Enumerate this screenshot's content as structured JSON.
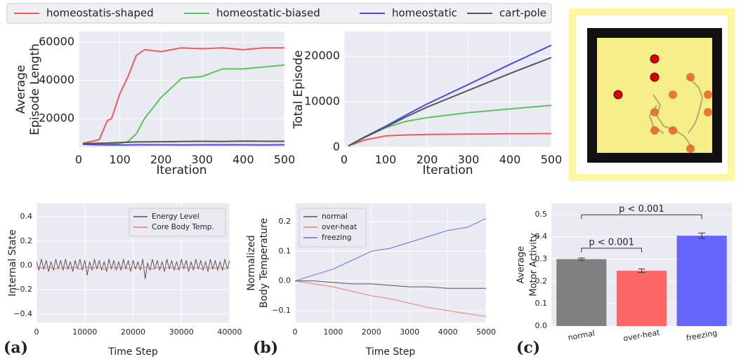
{
  "chart_data": [
    {
      "type": "line",
      "panel": null,
      "xlabel": "Iteration",
      "ylabel": [
        "Average",
        "Episode Length"
      ],
      "x": [
        10,
        30,
        50,
        70,
        80,
        100,
        120,
        140,
        160,
        200,
        250,
        300,
        350,
        400,
        450,
        500
      ],
      "series": [
        {
          "name": "homeostatis-shaped",
          "color": "#f05a5a",
          "values": [
            7000,
            8000,
            9000,
            19000,
            20000,
            33000,
            42000,
            53000,
            56000,
            55000,
            57000,
            56500,
            57000,
            56000,
            57000,
            57000
          ]
        },
        {
          "name": "homeostatic-biased",
          "color": "#5cc25c",
          "values": [
            6500,
            6500,
            6500,
            6600,
            6700,
            7000,
            8000,
            12000,
            20000,
            31000,
            41000,
            42000,
            46000,
            46000,
            47000,
            48000
          ]
        },
        {
          "name": "homeostatic",
          "color": "#4a4ae6",
          "values": [
            6500,
            6400,
            6300,
            6200,
            6200,
            6200,
            6200,
            6300,
            6300,
            6300,
            6200,
            6300,
            6300,
            6300,
            6200,
            6300
          ]
        },
        {
          "name": "cart-pole",
          "color": "#555555",
          "values": [
            7000,
            7000,
            7100,
            7200,
            7300,
            7500,
            7600,
            7800,
            7800,
            7900,
            8000,
            8100,
            8000,
            8200,
            8100,
            8100
          ]
        }
      ],
      "xlim": [
        0,
        500
      ],
      "xticks": [
        0,
        100,
        200,
        300,
        400,
        500
      ],
      "ylim": [
        5000,
        65500
      ],
      "yticks": [
        20000,
        40000,
        60000
      ],
      "grid": true
    },
    {
      "type": "line",
      "xlabel": "Iteration",
      "ylabel": [
        "Total Episode"
      ],
      "x": [
        10,
        50,
        100,
        150,
        200,
        300,
        400,
        500
      ],
      "series": [
        {
          "color": "#f05a5a",
          "values": [
            300,
            1600,
            2500,
            2700,
            2800,
            2900,
            2950,
            3000
          ]
        },
        {
          "color": "#5cc25c",
          "values": [
            300,
            2200,
            4300,
            5700,
            6500,
            7600,
            8400,
            9200
          ]
        },
        {
          "color": "#4a4ae6",
          "values": [
            300,
            2300,
            4600,
            7100,
            9500,
            13800,
            18200,
            22400
          ]
        },
        {
          "color": "#555555",
          "values": [
            300,
            2200,
            4400,
            6700,
            8800,
            12500,
            16200,
            19700
          ]
        }
      ],
      "xlim": [
        0,
        500
      ],
      "xticks": [
        0,
        100,
        200,
        300,
        400,
        500
      ],
      "ylim": [
        0,
        25400
      ],
      "yticks": [
        0,
        10000,
        20000
      ],
      "grid": true
    },
    {
      "type": "line",
      "panel": "(a)",
      "xlabel": "Time Step",
      "ylabel": [
        "Internal State"
      ],
      "legend": "upper right",
      "x": [
        0,
        500,
        1000,
        1500,
        2000,
        2500,
        3000,
        3500,
        4000,
        4500,
        5000,
        5500,
        6000,
        6500,
        7000,
        7500,
        8000,
        8500,
        9000,
        9500,
        10000,
        10500,
        11000,
        11500,
        12000,
        12500,
        13000,
        13500,
        14000,
        14500,
        15000,
        15500,
        16000,
        16500,
        17000,
        17500,
        18000,
        18500,
        19000,
        19500,
        20000,
        20500,
        21000,
        21500,
        22000,
        22500,
        23000,
        23500,
        24000,
        24500,
        25000,
        25500,
        26000,
        26500,
        27000,
        27500,
        28000,
        28500,
        29000,
        29500,
        30000,
        30500,
        31000,
        31500,
        32000,
        32500,
        33000,
        33500,
        34000,
        34500,
        35000,
        35500,
        36000,
        36500,
        37000,
        37500,
        38000,
        38500,
        39000,
        39500,
        40000
      ],
      "series": [
        {
          "name": "Energy Level",
          "color": "#555555",
          "values": [
            0.03,
            -0.04,
            0.05,
            -0.03,
            0.04,
            -0.05,
            0.03,
            -0.04,
            0.05,
            -0.03,
            0.04,
            -0.04,
            0.05,
            -0.03,
            0.03,
            -0.05,
            0.04,
            -0.03,
            0.05,
            -0.04,
            0.04,
            -0.08,
            0.03,
            -0.04,
            0.05,
            -0.03,
            0.04,
            -0.04,
            0.03,
            -0.05,
            0.05,
            -0.03,
            0.04,
            -0.04,
            0.03,
            -0.04,
            0.05,
            -0.03,
            0.04,
            -0.05,
            0.04,
            -0.03,
            0.03,
            -0.04,
            0.05,
            -0.11,
            0.02,
            -0.04,
            0.05,
            -0.03,
            0.04,
            -0.04,
            0.03,
            -0.05,
            0.05,
            -0.03,
            0.04,
            -0.04,
            0.03,
            -0.04,
            0.05,
            -0.03,
            0.04,
            -0.05,
            0.03,
            -0.04,
            0.05,
            -0.03,
            0.04,
            -0.04,
            0.03,
            -0.05,
            0.05,
            -0.03,
            0.04,
            -0.04,
            0.03,
            -0.04,
            0.05,
            -0.03,
            0.04
          ]
        },
        {
          "name": "Core Body Temp.",
          "color": "#f07878",
          "values": [
            -0.02,
            -0.01,
            -0.02,
            -0.03,
            -0.02,
            -0.01,
            -0.02,
            -0.02,
            -0.03,
            -0.02,
            -0.02,
            -0.01,
            -0.02,
            -0.03,
            -0.02,
            -0.01,
            -0.02,
            -0.02,
            -0.03,
            -0.02,
            -0.02,
            -0.01,
            -0.02,
            -0.03,
            -0.02,
            -0.01,
            -0.02,
            -0.02,
            -0.03,
            -0.02,
            -0.02,
            -0.01,
            -0.02,
            -0.03,
            -0.02,
            -0.01,
            -0.02,
            -0.02,
            -0.03,
            -0.02,
            -0.02,
            -0.01,
            -0.02,
            -0.03,
            -0.02,
            -0.01,
            -0.02,
            -0.02,
            -0.03,
            -0.02,
            -0.02,
            -0.01,
            -0.02,
            -0.03,
            -0.02,
            -0.01,
            -0.02,
            -0.02,
            -0.03,
            -0.02,
            -0.02,
            -0.01,
            -0.02,
            -0.03,
            -0.02,
            -0.01,
            -0.02,
            -0.02,
            -0.03,
            -0.02,
            -0.02,
            -0.01,
            -0.02,
            -0.03,
            -0.02,
            -0.01,
            -0.02,
            -0.02,
            -0.03,
            -0.02,
            -0.02
          ]
        }
      ],
      "xlim": [
        0,
        40000
      ],
      "xticks": [
        0,
        10000,
        20000,
        30000,
        40000
      ],
      "ylim": [
        -0.47,
        0.51
      ],
      "yticks": [
        {
          "value": -0.4,
          "label": "−0.4"
        },
        {
          "value": -0.2,
          "label": "−0.2"
        },
        {
          "value": 0,
          "label": "0.0"
        },
        0.2,
        0.4
      ],
      "grid": true
    },
    {
      "type": "line",
      "panel": "(b)",
      "xlabel": "Time Step",
      "ylabel": [
        "Normalized",
        "Body Temperature"
      ],
      "legend": "upper left",
      "x": [
        0,
        500,
        1000,
        1500,
        2000,
        2500,
        3000,
        3500,
        4000,
        4500,
        5000
      ],
      "series": [
        {
          "name": "normal",
          "color": "#555555",
          "values": [
            0,
            0,
            -0.005,
            -0.01,
            -0.01,
            -0.015,
            -0.02,
            -0.02,
            -0.025,
            -0.025,
            -0.025
          ]
        },
        {
          "name": "over-heat",
          "color": "#f07878",
          "values": [
            0,
            -0.01,
            -0.02,
            -0.035,
            -0.05,
            -0.06,
            -0.075,
            -0.09,
            -0.1,
            -0.11,
            -0.12
          ]
        },
        {
          "name": "freezing",
          "color": "#6a6af0",
          "values": [
            0,
            0.02,
            0.04,
            0.07,
            0.1,
            0.11,
            0.13,
            0.15,
            0.17,
            0.18,
            0.21
          ]
        }
      ],
      "xlim": [
        0,
        5000
      ],
      "xticks": [
        0,
        1000,
        2000,
        3000,
        4000,
        5000
      ],
      "ylim": [
        -0.14,
        0.261
      ],
      "yticks": [
        {
          "value": -0.1,
          "label": "−0.1"
        },
        {
          "value": 0,
          "label": "0.0"
        },
        0.1,
        0.2
      ],
      "grid": true
    },
    {
      "type": "bar",
      "panel": "(c)",
      "ylabel": [
        "Average",
        "Motor Activity"
      ],
      "categories": [
        "normal",
        "over-heat",
        "freezing"
      ],
      "values": [
        0.3,
        0.248,
        0.405
      ],
      "errors": [
        0.005,
        0.008,
        0.012
      ],
      "colors": [
        "#808080",
        "#ff6666",
        "#6666ff"
      ],
      "annotations": [
        "p < 0.001",
        "p < 0.001"
      ],
      "ylim": [
        0,
        0.55
      ],
      "yticks": [
        {
          "value": 0,
          "label": "0.0"
        },
        0.1,
        0.2,
        0.3,
        0.4,
        0.5
      ],
      "grid": true
    }
  ]
}
